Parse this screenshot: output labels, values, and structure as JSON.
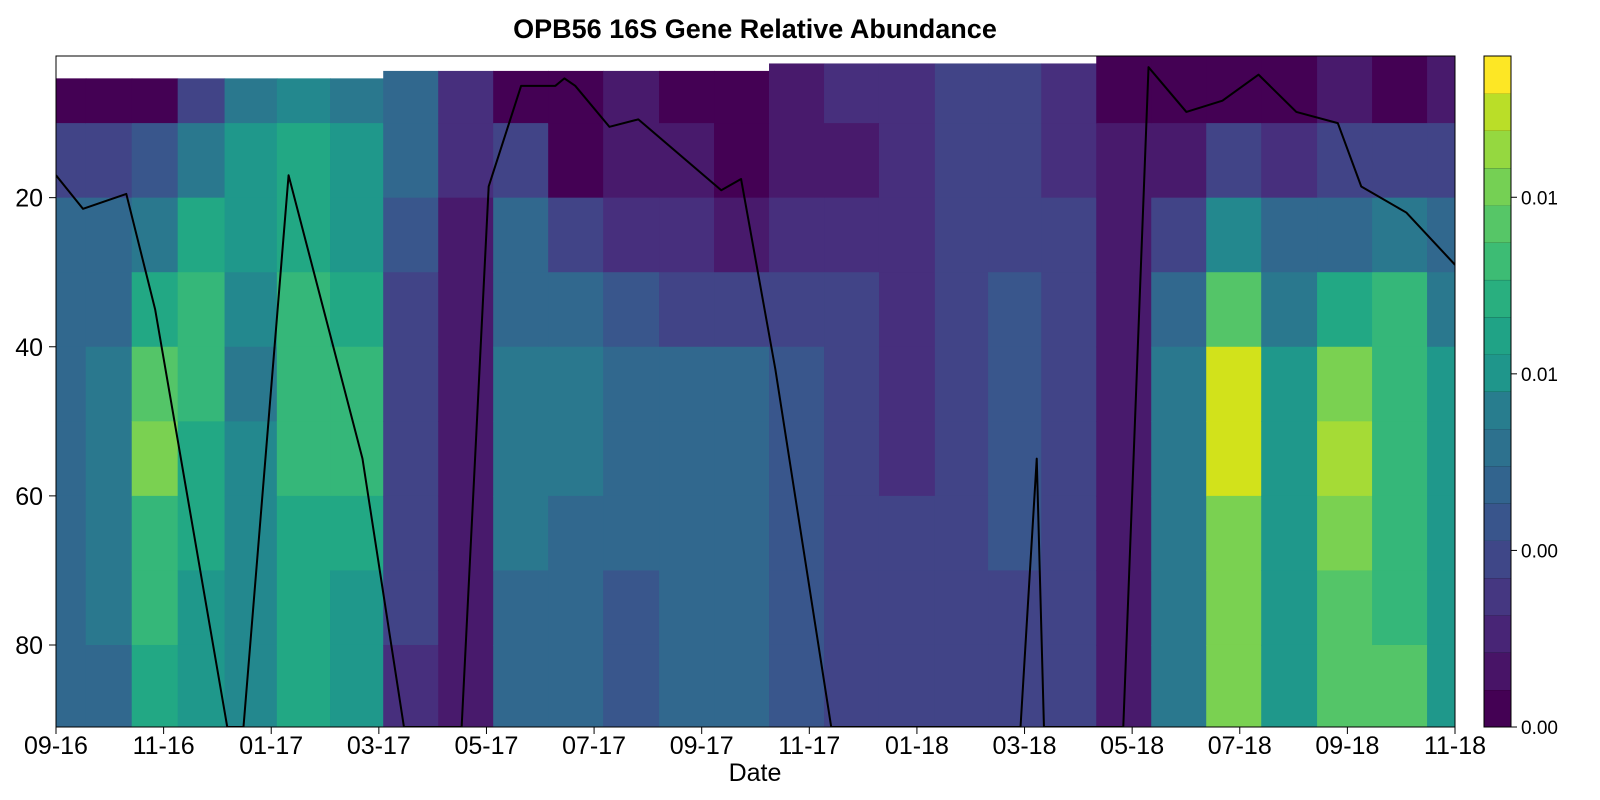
{
  "chart_data": {
    "type": "heatmap",
    "title": "OPB56 16S Gene Relative Abundance",
    "xlabel": "Date",
    "ylabel": "",
    "x_ticks": [
      "09-16",
      "11-16",
      "01-17",
      "03-17",
      "05-17",
      "07-17",
      "09-17",
      "11-17",
      "01-18",
      "03-18",
      "05-18",
      "07-18",
      "09-18",
      "11-18"
    ],
    "y_ticks": [
      20,
      40,
      60,
      80
    ],
    "ylim": [
      91,
      1
    ],
    "y_inverted": true,
    "colorbar": {
      "colormap": "viridis",
      "range": [
        0.0,
        0.019
      ],
      "levels": 18,
      "tick_labels": [
        "0.00",
        "0.00",
        "0.01",
        "0.01"
      ],
      "tick_values": [
        0.0,
        0.005,
        0.01,
        0.015
      ]
    },
    "colors": [
      "#440154",
      "#481a6c",
      "#472f7d",
      "#414487",
      "#39568c",
      "#31688e",
      "#2a788e",
      "#23888e",
      "#1f988b",
      "#22a884",
      "#35b779",
      "#54c568",
      "#7ad151",
      "#a5db36",
      "#d2e21b",
      "#fde725"
    ],
    "columns": [
      {
        "date": "2016-09-20",
        "top_depth": 4
      },
      {
        "date": "2016-10-15",
        "top_depth": 4
      },
      {
        "date": "2016-11-10",
        "top_depth": 4
      },
      {
        "date": "2016-12-05",
        "top_depth": 4
      },
      {
        "date": "2017-01-01",
        "top_depth": 4
      },
      {
        "date": "2017-02-01",
        "top_depth": 4
      },
      {
        "date": "2017-03-01",
        "top_depth": 4
      },
      {
        "date": "2017-04-01",
        "top_depth": 3
      },
      {
        "date": "2017-05-01",
        "top_depth": 3
      },
      {
        "date": "2017-06-01",
        "top_depth": 3
      },
      {
        "date": "2017-07-01",
        "top_depth": 3
      },
      {
        "date": "2017-08-01",
        "top_depth": 3
      },
      {
        "date": "2017-09-01",
        "top_depth": 3
      },
      {
        "date": "2017-10-01",
        "top_depth": 3
      },
      {
        "date": "2017-11-01",
        "top_depth": 2
      },
      {
        "date": "2017-12-01",
        "top_depth": 2
      },
      {
        "date": "2018-01-01",
        "top_depth": 2
      },
      {
        "date": "2018-02-01",
        "top_depth": 2
      },
      {
        "date": "2018-03-01",
        "top_depth": 2
      },
      {
        "date": "2018-04-01",
        "top_depth": 2
      },
      {
        "date": "2018-05-01",
        "top_depth": 1
      },
      {
        "date": "2018-06-01",
        "top_depth": 1
      },
      {
        "date": "2018-07-01",
        "top_depth": 1
      },
      {
        "date": "2018-08-01",
        "top_depth": 1
      },
      {
        "date": "2018-09-01",
        "top_depth": 1
      },
      {
        "date": "2018-10-01",
        "top_depth": 1
      },
      {
        "date": "2018-11-01",
        "top_depth": 1
      }
    ],
    "depths": [
      5,
      15,
      25,
      35,
      45,
      55,
      65,
      75,
      85
    ],
    "values": [
      [
        0.001,
        0.004,
        0.006,
        0.007,
        0.007,
        0.007,
        0.006,
        0.006,
        0.006
      ],
      [
        0.001,
        0.004,
        0.006,
        0.007,
        0.008,
        0.008,
        0.008,
        0.008,
        0.007
      ],
      [
        0.001,
        0.005,
        0.008,
        0.011,
        0.014,
        0.015,
        0.013,
        0.012,
        0.011
      ],
      [
        0.004,
        0.008,
        0.011,
        0.013,
        0.012,
        0.011,
        0.011,
        0.01,
        0.01
      ],
      [
        0.008,
        0.01,
        0.01,
        0.009,
        0.008,
        0.009,
        0.009,
        0.009,
        0.009
      ],
      [
        0.009,
        0.011,
        0.011,
        0.012,
        0.013,
        0.012,
        0.011,
        0.011,
        0.011
      ],
      [
        0.008,
        0.01,
        0.01,
        0.011,
        0.013,
        0.012,
        0.011,
        0.01,
        0.01
      ],
      [
        0.006,
        0.006,
        0.005,
        0.004,
        0.004,
        0.004,
        0.004,
        0.004,
        0.003
      ],
      [
        0.003,
        0.003,
        0.002,
        0.002,
        0.002,
        0.002,
        0.002,
        0.002,
        0.002
      ],
      [
        0.001,
        0.004,
        0.006,
        0.007,
        0.008,
        0.008,
        0.008,
        0.007,
        0.007
      ],
      [
        0.001,
        0.001,
        0.004,
        0.007,
        0.008,
        0.008,
        0.007,
        0.007,
        0.007
      ],
      [
        0.002,
        0.002,
        0.003,
        0.005,
        0.006,
        0.006,
        0.006,
        0.005,
        0.005
      ],
      [
        0.001,
        0.002,
        0.003,
        0.004,
        0.006,
        0.006,
        0.006,
        0.006,
        0.006
      ],
      [
        0.001,
        0.001,
        0.002,
        0.004,
        0.006,
        0.007,
        0.007,
        0.006,
        0.006
      ],
      [
        0.002,
        0.002,
        0.003,
        0.004,
        0.005,
        0.005,
        0.005,
        0.005,
        0.005
      ],
      [
        0.003,
        0.002,
        0.003,
        0.004,
        0.004,
        0.004,
        0.004,
        0.004,
        0.004
      ],
      [
        0.003,
        0.003,
        0.003,
        0.003,
        0.003,
        0.003,
        0.004,
        0.004,
        0.004
      ],
      [
        0.004,
        0.004,
        0.004,
        0.004,
        0.004,
        0.004,
        0.004,
        0.004,
        0.004
      ],
      [
        0.004,
        0.004,
        0.004,
        0.005,
        0.005,
        0.005,
        0.005,
        0.004,
        0.004
      ],
      [
        0.003,
        0.003,
        0.004,
        0.004,
        0.004,
        0.004,
        0.004,
        0.004,
        0.004
      ],
      [
        0.001,
        0.002,
        0.002,
        0.002,
        0.002,
        0.002,
        0.002,
        0.002,
        0.002
      ],
      [
        0.001,
        0.002,
        0.004,
        0.007,
        0.008,
        0.008,
        0.008,
        0.008,
        0.008
      ],
      [
        0.001,
        0.004,
        0.009,
        0.014,
        0.017,
        0.017,
        0.015,
        0.015,
        0.015
      ],
      [
        0.001,
        0.003,
        0.006,
        0.008,
        0.01,
        0.01,
        0.01,
        0.01,
        0.01
      ],
      [
        0.002,
        0.004,
        0.007,
        0.011,
        0.015,
        0.016,
        0.015,
        0.014,
        0.014
      ],
      [
        0.001,
        0.004,
        0.008,
        0.012,
        0.013,
        0.013,
        0.012,
        0.013,
        0.014
      ],
      [
        0.002,
        0.004,
        0.006,
        0.008,
        0.01,
        0.01,
        0.01,
        0.01,
        0.01
      ]
    ],
    "overlay_line": {
      "points": [
        [
          "2016-09-16",
          17
        ],
        [
          "2016-10-01",
          21.5
        ],
        [
          "2016-10-25",
          19.5
        ],
        [
          "2016-11-10",
          35
        ],
        [
          "2016-12-20",
          91
        ],
        [
          "2016-12-29",
          91
        ],
        [
          "2017-01-23",
          17
        ],
        [
          "2017-03-05",
          55
        ],
        [
          "2017-03-28",
          91
        ],
        [
          "2017-04-29",
          91
        ],
        [
          "2017-05-14",
          18.5
        ],
        [
          "2017-06-01",
          5
        ],
        [
          "2017-06-20",
          5
        ],
        [
          "2017-06-25",
          4
        ],
        [
          "2017-07-01",
          5
        ],
        [
          "2017-07-20",
          10.5
        ],
        [
          "2017-08-05",
          9.5
        ],
        [
          "2017-09-20",
          19
        ],
        [
          "2017-10-01",
          17.5
        ],
        [
          "2017-10-20",
          43
        ],
        [
          "2017-11-20",
          91
        ],
        [
          "2018-03-05",
          91
        ],
        [
          "2018-03-14",
          55
        ],
        [
          "2018-03-18",
          91
        ],
        [
          "2018-05-01",
          91
        ],
        [
          "2018-05-15",
          2.5
        ],
        [
          "2018-06-05",
          8.5
        ],
        [
          "2018-06-25",
          7
        ],
        [
          "2018-07-15",
          3.5
        ],
        [
          "2018-08-05",
          8.5
        ],
        [
          "2018-08-28",
          10
        ],
        [
          "2018-09-10",
          18.5
        ],
        [
          "2018-10-05",
          22
        ],
        [
          "2018-11-01",
          29
        ]
      ]
    }
  }
}
